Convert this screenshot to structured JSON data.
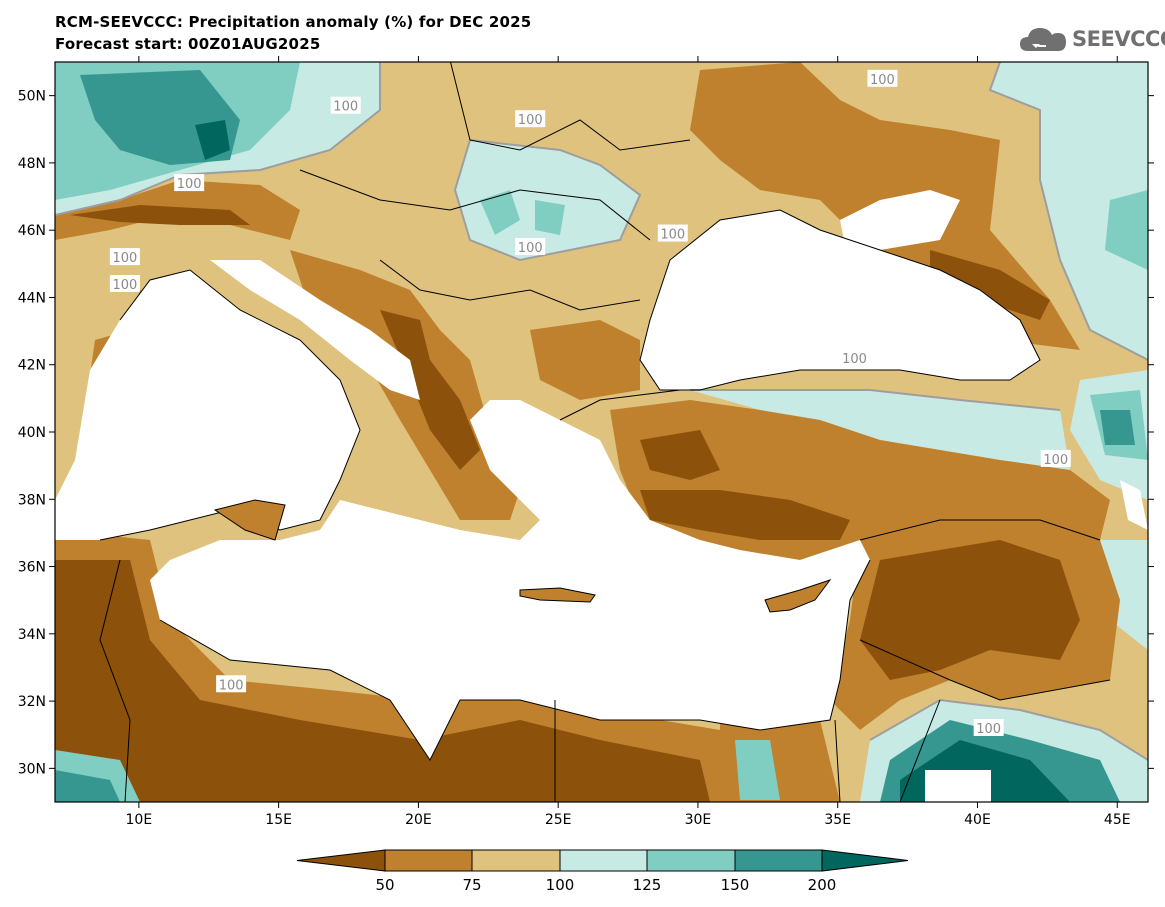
{
  "header": {
    "title": "RCM-SEEVCCC: Precipitation anomaly (%) for DEC 2025",
    "subtitle": "Forecast start: 00Z01AUG2025"
  },
  "logo": {
    "text": "SEEVCCC",
    "icon": "cloud-icon"
  },
  "map": {
    "lat_labels": [
      "50N",
      "48N",
      "46N",
      "44N",
      "42N",
      "40N",
      "38N",
      "36N",
      "34N",
      "32N",
      "30N"
    ],
    "lon_labels": [
      "10E",
      "15E",
      "20E",
      "25E",
      "30E",
      "35E",
      "40E",
      "45E"
    ],
    "contour_label": "100",
    "contour_labels": [
      {
        "text": "100",
        "lon": 17.4,
        "lat": 49.7
      },
      {
        "text": "100",
        "lon": 24.0,
        "lat": 49.3
      },
      {
        "text": "100",
        "lon": 36.6,
        "lat": 50.5
      },
      {
        "text": "100",
        "lon": 11.8,
        "lat": 47.4
      },
      {
        "text": "100",
        "lon": 24.0,
        "lat": 45.5
      },
      {
        "text": "100",
        "lon": 29.1,
        "lat": 45.9
      },
      {
        "text": "100",
        "lon": 9.5,
        "lat": 45.2
      },
      {
        "text": "100",
        "lon": 9.5,
        "lat": 44.4
      },
      {
        "text": "100",
        "lon": 42.8,
        "lat": 39.2
      },
      {
        "text": "100",
        "lon": 13.3,
        "lat": 32.5
      },
      {
        "text": "100",
        "lon": 40.4,
        "lat": 31.2
      },
      {
        "text": "100",
        "lon": 35.6,
        "lat": 42.2
      }
    ],
    "extent": {
      "lon": [
        7,
        46.1
      ],
      "lat": [
        29,
        51
      ]
    },
    "ocean_color": "#ffffff"
  },
  "colorbar": {
    "tick_labels": [
      "50",
      "75",
      "100",
      "125",
      "150",
      "200"
    ],
    "colors": [
      "#8c510a",
      "#bf812d",
      "#dfc27d",
      "#c7eae5",
      "#80cdc1",
      "#35978f",
      "#01665e"
    ]
  }
}
